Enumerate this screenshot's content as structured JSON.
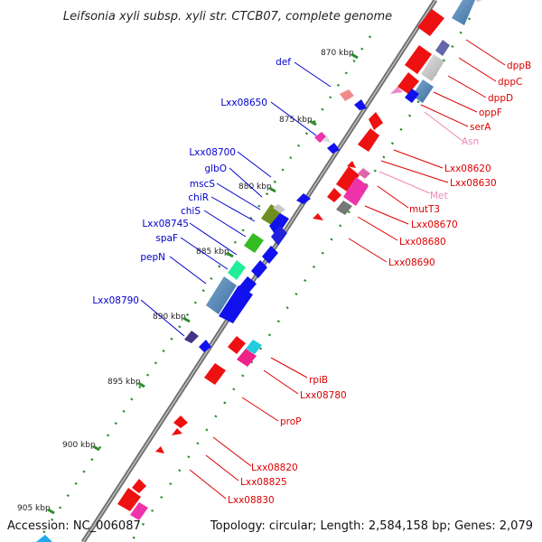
{
  "title": "Leifsonia xyli subsp. xyli str. CTCB07, complete genome",
  "footer": {
    "accession": "Accession: NC_006087",
    "stats": "Topology: circular; Length: 2,584,158 bp; Genes: 2,079"
  },
  "colors": {
    "backbone": "#6e6e6e",
    "reverse_label": "#0000cc",
    "forward_label": "#dd0000",
    "rna_label": "#ee88bb",
    "ruler_tick": "#2a8a2a",
    "forward_gene": "#ee1111",
    "reverse_gene": "#1111ee"
  },
  "ruler": [
    "870 kbp",
    "875 kbp",
    "880 kbp",
    "885 kbp",
    "890 kbp",
    "895 kbp",
    "900 kbp",
    "905 kbp"
  ],
  "left_labels": [
    "def",
    "Lxx08650",
    "Lxx08700",
    "glbO",
    "mscS",
    "chiR",
    "chiS",
    "Lxx08745",
    "spaF",
    "pepN",
    "Lxx08790"
  ],
  "right_labels": [
    {
      "text": "dppB",
      "kind": "gene"
    },
    {
      "text": "dppC",
      "kind": "gene"
    },
    {
      "text": "dppD",
      "kind": "gene"
    },
    {
      "text": "oppF",
      "kind": "gene"
    },
    {
      "text": "serA",
      "kind": "gene"
    },
    {
      "text": "Asn",
      "kind": "rna"
    },
    {
      "text": "Lxx08620",
      "kind": "gene"
    },
    {
      "text": "Lxx08630",
      "kind": "gene"
    },
    {
      "text": "Met",
      "kind": "rna"
    },
    {
      "text": "mutT3",
      "kind": "gene"
    },
    {
      "text": "Lxx08670",
      "kind": "gene"
    },
    {
      "text": "Lxx08680",
      "kind": "gene"
    },
    {
      "text": "Lxx08690",
      "kind": "gene"
    },
    {
      "text": "rpiB",
      "kind": "gene"
    },
    {
      "text": "Lxx08780",
      "kind": "gene"
    },
    {
      "text": "proP",
      "kind": "gene"
    },
    {
      "text": "Lxx08820",
      "kind": "gene"
    },
    {
      "text": "Lxx08825",
      "kind": "gene"
    },
    {
      "text": "Lxx08830",
      "kind": "gene"
    }
  ]
}
